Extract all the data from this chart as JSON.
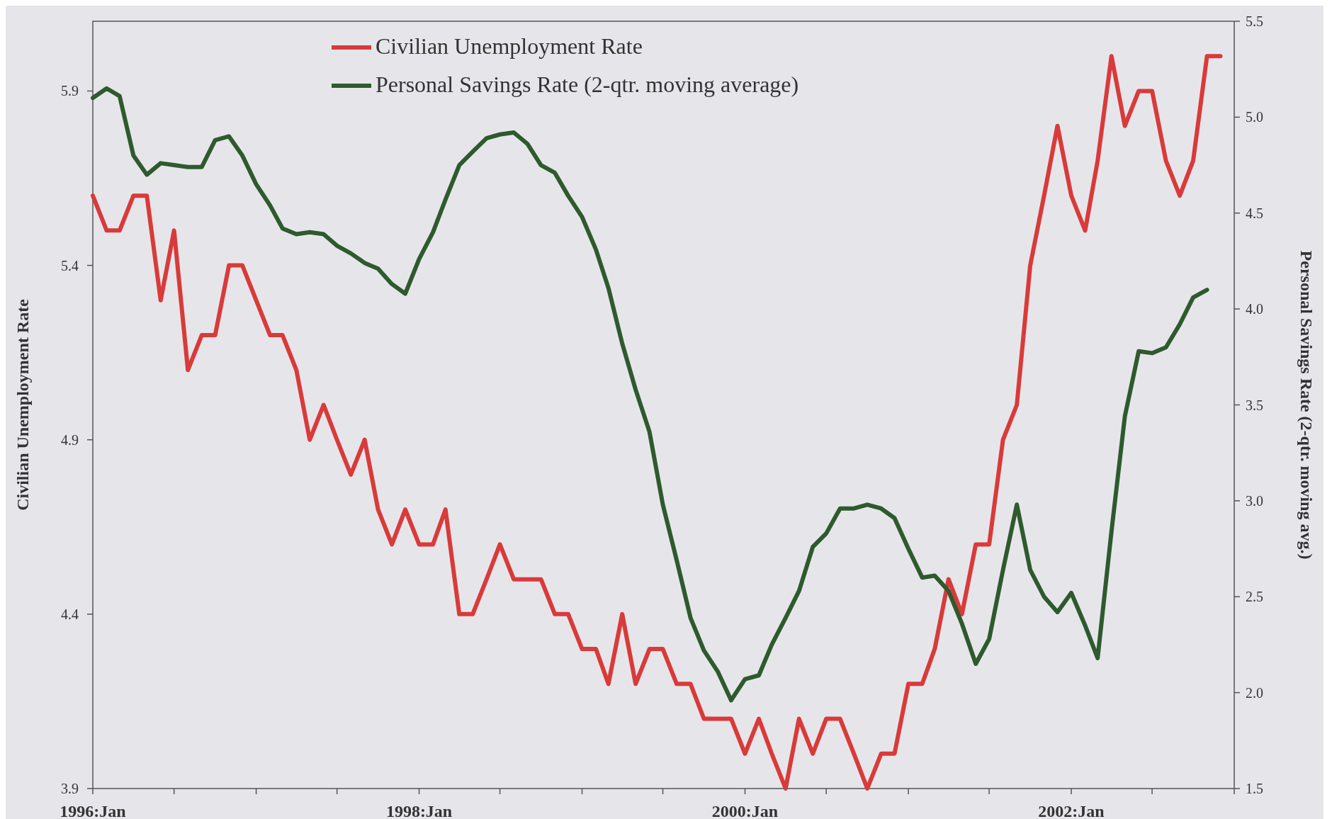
{
  "chart_data": {
    "type": "line",
    "ylabel": "Civilian Unemployment Rate",
    "y2label": "Personal Savings Rate (2-qtr. moving avg.)",
    "x": [
      "1996-01",
      "1996-02",
      "1996-03",
      "1996-04",
      "1996-05",
      "1996-06",
      "1996-07",
      "1996-08",
      "1996-09",
      "1996-10",
      "1996-11",
      "1996-12",
      "1997-01",
      "1997-02",
      "1997-03",
      "1997-04",
      "1997-05",
      "1997-06",
      "1997-07",
      "1997-08",
      "1997-09",
      "1997-10",
      "1997-11",
      "1997-12",
      "1998-01",
      "1998-02",
      "1998-03",
      "1998-04",
      "1998-05",
      "1998-06",
      "1998-07",
      "1998-08",
      "1998-09",
      "1998-10",
      "1998-11",
      "1998-12",
      "1999-01",
      "1999-02",
      "1999-03",
      "1999-04",
      "1999-05",
      "1999-06",
      "1999-07",
      "1999-08",
      "1999-09",
      "1999-10",
      "1999-11",
      "1999-12",
      "2000-01",
      "2000-02",
      "2000-03",
      "2000-04",
      "2000-05",
      "2000-06",
      "2000-07",
      "2000-08",
      "2000-09",
      "2000-10",
      "2000-11",
      "2000-12",
      "2001-01",
      "2001-02",
      "2001-03",
      "2001-04",
      "2001-05",
      "2001-06",
      "2001-07",
      "2001-08",
      "2001-09",
      "2001-10",
      "2001-11",
      "2001-12",
      "2002-01",
      "2002-02",
      "2002-03",
      "2002-04",
      "2002-05",
      "2002-06",
      "2002-07",
      "2002-08",
      "2002-09",
      "2002-10",
      "2002-11",
      "2002-12"
    ],
    "series": [
      {
        "name": "Civilian Unemployment Rate",
        "color": "#d93a3a",
        "values": [
          5.6,
          5.5,
          5.5,
          5.6,
          5.6,
          5.3,
          5.5,
          5.1,
          5.2,
          5.2,
          5.4,
          5.4,
          5.3,
          5.2,
          5.2,
          5.1,
          4.9,
          5.0,
          4.9,
          4.8,
          4.9,
          4.7,
          4.6,
          4.7,
          4.6,
          4.6,
          4.7,
          4.4,
          4.4,
          4.5,
          4.6,
          4.5,
          4.5,
          4.5,
          4.4,
          4.4,
          4.3,
          4.3,
          4.2,
          4.4,
          4.2,
          4.3,
          4.3,
          4.2,
          4.2,
          4.1,
          4.1,
          4.1,
          4.0,
          4.1,
          4.0,
          3.9,
          4.1,
          4.0,
          4.1,
          4.1,
          4.0,
          3.9,
          4.0,
          4.0,
          4.2,
          4.2,
          4.3,
          4.5,
          4.4,
          4.6,
          4.6,
          4.9,
          5.0,
          5.4,
          5.6,
          5.8,
          5.6,
          5.5,
          5.7,
          6.0,
          5.8,
          5.9,
          5.9,
          5.7,
          5.6,
          5.7,
          6.0,
          6.0
        ]
      },
      {
        "name": "Personal Savings Rate (2-qtr. moving average)",
        "color": "#2e5a2e",
        "axis": "y2",
        "values": [
          5.1,
          5.15,
          5.11,
          4.8,
          4.7,
          4.76,
          4.75,
          4.74,
          4.74,
          4.88,
          4.9,
          4.8,
          4.65,
          4.54,
          4.42,
          4.39,
          4.4,
          4.39,
          4.33,
          4.29,
          4.24,
          4.21,
          4.13,
          4.08,
          4.26,
          4.4,
          4.57,
          4.75,
          4.82,
          4.89,
          4.91,
          4.92,
          4.86,
          4.75,
          4.71,
          4.59,
          4.48,
          4.31,
          4.11,
          3.82,
          3.58,
          3.36,
          2.98,
          2.69,
          2.39,
          2.22,
          2.11,
          1.96,
          2.07,
          2.09,
          2.25,
          2.39,
          2.53,
          2.76,
          2.83,
          2.96,
          2.96,
          2.98,
          2.96,
          2.91,
          2.75,
          2.6,
          2.61,
          2.53,
          2.36,
          2.15,
          2.28,
          2.64,
          2.98,
          2.64,
          2.5,
          2.42,
          2.52,
          2.35,
          2.18,
          2.84,
          3.44,
          3.78,
          3.77,
          3.8,
          3.92,
          4.06,
          4.1,
          null
        ]
      }
    ],
    "xlim": [
      "1996-01",
      "2003-01"
    ],
    "xticks": [
      {
        "value": "1996-01",
        "label": "1996:Jan"
      },
      {
        "value": "1996-07",
        "label": null
      },
      {
        "value": "1997-01",
        "label": null
      },
      {
        "value": "1997-07",
        "label": null
      },
      {
        "value": "1998-01",
        "label": "1998:Jan"
      },
      {
        "value": "1998-07",
        "label": null
      },
      {
        "value": "1999-01",
        "label": null
      },
      {
        "value": "1999-07",
        "label": null
      },
      {
        "value": "2000-01",
        "label": "2000:Jan"
      },
      {
        "value": "2000-07",
        "label": null
      },
      {
        "value": "2001-01",
        "label": null
      },
      {
        "value": "2001-07",
        "label": null
      },
      {
        "value": "2002-01",
        "label": "2002:Jan"
      },
      {
        "value": "2002-07",
        "label": null
      },
      {
        "value": "2003-01",
        "label": null
      }
    ],
    "ylim": [
      3.9,
      6.1
    ],
    "yticks": [
      3.9,
      4.4,
      4.9,
      5.4,
      5.9
    ],
    "y2lim": [
      1.5,
      5.5
    ],
    "y2ticks": [
      {
        "value": 1.5,
        "label": "1.5"
      },
      {
        "value": 2,
        "label": "2.0"
      },
      {
        "value": 2.5,
        "label": "2.5"
      },
      {
        "value": 3,
        "label": "3.0"
      },
      {
        "value": 3.5,
        "label": "3.5"
      },
      {
        "value": 4,
        "label": "4.0"
      },
      {
        "value": 4.5,
        "label": "4.5"
      },
      {
        "value": 5,
        "label": "5.0"
      },
      {
        "value": 5.5,
        "label": "5.5"
      }
    ],
    "legend": "top left",
    "line_style": "solid"
  }
}
